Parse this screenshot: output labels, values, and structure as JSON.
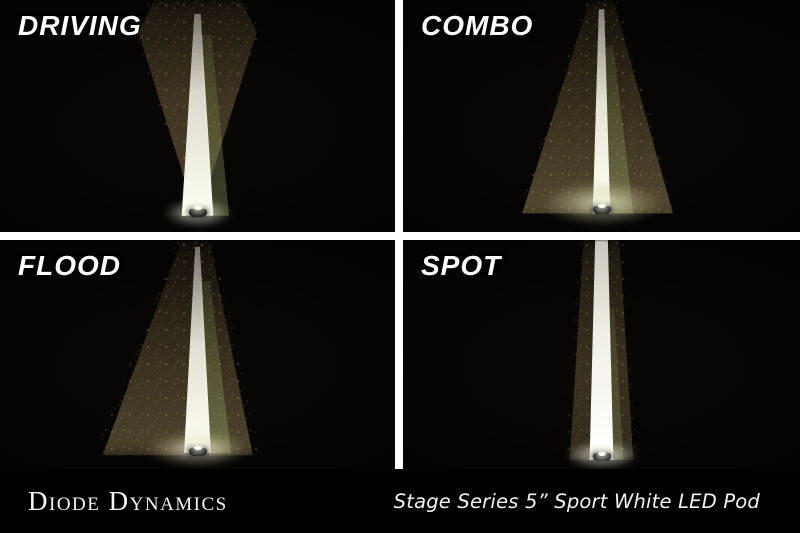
{
  "image_type": "product-beam-pattern-comparison",
  "panels": [
    {
      "id": "driving",
      "label": "DRIVING"
    },
    {
      "id": "combo",
      "label": "COMBO"
    },
    {
      "id": "flood",
      "label": "FLOOD"
    },
    {
      "id": "spot",
      "label": "SPOT"
    }
  ],
  "footer": {
    "brand": "Diode Dynamics",
    "product": "Stage Series 5” Sport White LED Pod"
  },
  "colors": {
    "background": "#000000",
    "divider": "#ffffff",
    "label_text": "#ffffff",
    "beam_core": "#fdfdf2",
    "warm_spill": "#a5845a",
    "grass_tint": "#8ca05e"
  }
}
